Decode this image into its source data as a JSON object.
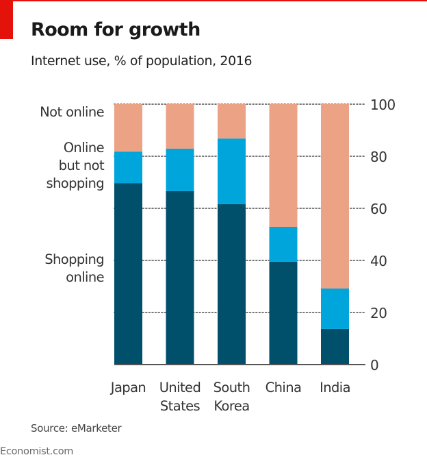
{
  "header": {
    "title": "Room for growth",
    "subtitle": "Internet use, % of population, 2016"
  },
  "footer": {
    "source": "Source: eMarketer",
    "brand": "Economist.com"
  },
  "colors": {
    "accent_red": "#e3120b",
    "shopping_online": "#00506b",
    "online_not_shopping": "#00a5dc",
    "not_online": "#eba285",
    "gridline": "#777777",
    "axis": "#555555",
    "text": "#333333"
  },
  "chart_data": {
    "type": "bar",
    "stacked": true,
    "title": "Room for growth",
    "subtitle": "Internet use, % of population, 2016",
    "xlabel": "",
    "ylabel": "",
    "ylim": [
      0,
      100
    ],
    "yticks": [
      0,
      20,
      40,
      60,
      80,
      100
    ],
    "y_axis_side": "right",
    "grid": "dotted horizontal",
    "legend": "left, inline labels",
    "categories": [
      {
        "name": "Japan",
        "lines": [
          "Japan"
        ]
      },
      {
        "name": "United States",
        "lines": [
          "United",
          "States"
        ]
      },
      {
        "name": "South Korea",
        "lines": [
          "South",
          "Korea"
        ]
      },
      {
        "name": "China",
        "lines": [
          "China"
        ]
      },
      {
        "name": "India",
        "lines": [
          "India"
        ]
      }
    ],
    "series": [
      {
        "name": "Shopping online",
        "legend_lines": [
          "Shopping",
          "online"
        ],
        "color_key": "shopping_online",
        "values": [
          69.7,
          66.6,
          61.6,
          39.5,
          13.7
        ]
      },
      {
        "name": "Online but not shopping",
        "legend_lines": [
          "Online",
          "but not",
          "shopping"
        ],
        "color_key": "online_not_shopping",
        "values": [
          12.1,
          16.3,
          25.2,
          13.4,
          15.5
        ]
      },
      {
        "name": "Not online",
        "legend_lines": [
          "Not online"
        ],
        "color_key": "not_online",
        "values": [
          18.2,
          17.1,
          13.2,
          47.1,
          70.8
        ]
      }
    ],
    "source": "Source: eMarketer"
  }
}
